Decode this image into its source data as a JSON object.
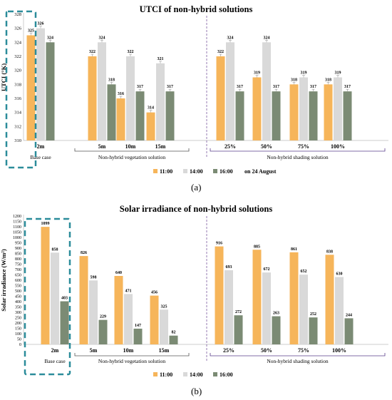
{
  "captions": [
    "(a)",
    "(b)"
  ],
  "chart_data": [
    {
      "type": "bar",
      "title": "UTCI of non-hybrid solutions",
      "ylabel": "UTCI (°K)",
      "ylim": [
        310,
        328
      ],
      "yticks": [
        310,
        312,
        314,
        316,
        318,
        320,
        322,
        324,
        326,
        328
      ],
      "grid": false,
      "categories": [
        "2m",
        "5m",
        "10m",
        "15m",
        "25%",
        "50%",
        "75%",
        "100%"
      ],
      "groups": [
        {
          "label": "Base case",
          "categories": [
            "2m"
          ]
        },
        {
          "label": "Non-hybrid vegetation solution",
          "categories": [
            "5m",
            "10m",
            "15m"
          ]
        },
        {
          "label": "Non-hybrid shading solution",
          "categories": [
            "25%",
            "50%",
            "75%",
            "100%"
          ]
        }
      ],
      "series": [
        {
          "name": "11:00",
          "color": "#f6b55a",
          "values": [
            325,
            322,
            316,
            314,
            322,
            319,
            318,
            318
          ]
        },
        {
          "name": "14:00",
          "color": "#d9d9d9",
          "values": [
            326,
            324,
            322,
            321,
            324,
            324,
            319,
            319
          ]
        },
        {
          "name": "16:00",
          "color": "#7b8b74",
          "values": [
            324,
            318,
            317,
            317,
            317,
            317,
            317,
            317
          ]
        }
      ],
      "data_labels": [
        [
          "325",
          "322",
          "316",
          "314",
          "322",
          "319",
          "318",
          "318"
        ],
        [
          "326",
          "324",
          "322",
          "321",
          "324",
          "324",
          "319",
          "319"
        ],
        [
          "324",
          "318",
          "317",
          "317",
          "317",
          "317",
          "317",
          "317"
        ]
      ],
      "legend_position": "bottom-center",
      "legend_note": "on 24 August",
      "error_bars": true
    },
    {
      "type": "bar",
      "title": "Solar irradiance of non-hybrid solutions",
      "ylabel": "Solar irradiance (W/m²)",
      "ylim": [
        0,
        1200
      ],
      "yticks": [
        0,
        50,
        100,
        150,
        200,
        250,
        300,
        350,
        400,
        450,
        500,
        550,
        600,
        650,
        700,
        750,
        800,
        850,
        900,
        950,
        1000,
        1050,
        1100,
        1150,
        1200
      ],
      "grid": false,
      "categories": [
        "2m",
        "5m",
        "10m",
        "15m",
        "25%",
        "50%",
        "75%",
        "100%"
      ],
      "groups": [
        {
          "label": "Base case",
          "categories": [
            "2m"
          ]
        },
        {
          "label": "Non-hybrid vegetation solution",
          "categories": [
            "5m",
            "10m",
            "15m"
          ]
        },
        {
          "label": "Non-hybrid shading solution",
          "categories": [
            "25%",
            "50%",
            "75%",
            "100%"
          ]
        }
      ],
      "series": [
        {
          "name": "11:00",
          "color": "#f6b55a",
          "values": [
            1099,
            826,
            640,
            456,
            916,
            885,
            861,
            838
          ]
        },
        {
          "name": "14:00",
          "color": "#d9d9d9",
          "values": [
            858,
            598,
            471,
            325,
            693,
            672,
            652,
            630
          ]
        },
        {
          "name": "16:00",
          "color": "#7b8b74",
          "values": [
            403,
            229,
            147,
            82,
            272,
            263,
            252,
            244
          ]
        }
      ],
      "data_labels": [
        [
          "1099",
          "826",
          "640",
          "456",
          "916",
          "885",
          "861",
          "838"
        ],
        [
          "858",
          "598",
          "471",
          "325",
          "693",
          "672",
          "652",
          "630"
        ],
        [
          "403",
          "229",
          "147",
          "82",
          "272",
          "263",
          "252",
          "244"
        ]
      ],
      "legend_position": "bottom-center",
      "error_bars": false
    }
  ]
}
